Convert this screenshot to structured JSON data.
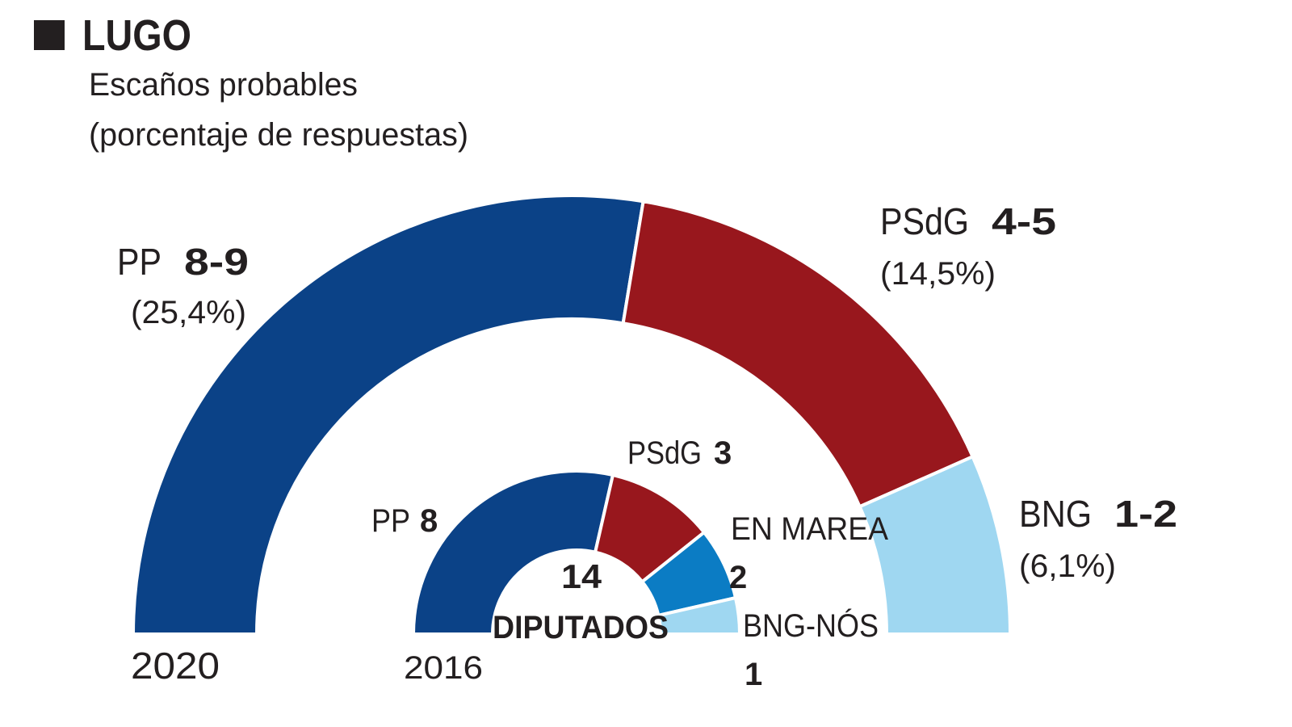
{
  "title": "LUGO",
  "subtitle_line1": "Escaños probables",
  "subtitle_line2": "(porcentaje de respuestas)",
  "chart_data": [
    {
      "type": "pie",
      "subtype": "hemicycle",
      "label": "2020",
      "series": [
        {
          "name": "PP",
          "seats": "8-9",
          "percent_label": "(25,4%)",
          "percent": 25.4,
          "color": "#0b4287"
        },
        {
          "name": "PSdG",
          "seats": "4-5",
          "percent_label": "(14,5%)",
          "percent": 14.5,
          "color": "#98171d"
        },
        {
          "name": "BNG",
          "seats": "1-2",
          "percent_label": "(6,1%)",
          "percent": 6.1,
          "color": "#9fd7f1"
        }
      ]
    },
    {
      "type": "pie",
      "subtype": "hemicycle",
      "label": "2016",
      "total_value": "14",
      "total_label": "DIPUTADOS",
      "series": [
        {
          "name": "PP",
          "seats": "8",
          "value": 8,
          "color": "#0b4287"
        },
        {
          "name": "PSdG",
          "seats": "3",
          "value": 3,
          "color": "#98171d"
        },
        {
          "name": "EN MAREA",
          "seats": "2",
          "value": 2,
          "color": "#0b7cc4"
        },
        {
          "name": "BNG-NÓS",
          "seats": "1",
          "value": 1,
          "color": "#9fd7f1"
        }
      ]
    }
  ]
}
